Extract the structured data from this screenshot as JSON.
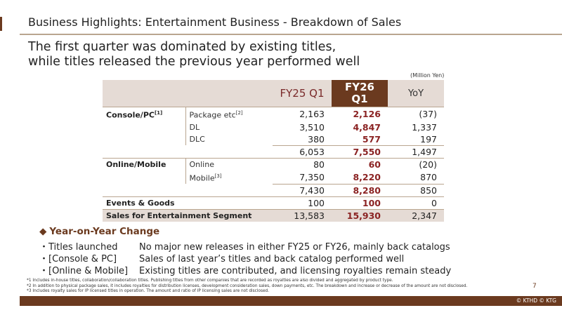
{
  "header": {
    "title": "Business Highlights: Entertainment Business - Breakdown of Sales",
    "subtitle_line1": "The first quarter was dominated by existing titles,",
    "subtitle_line2": "while titles released the previous year performed well"
  },
  "table": {
    "unit": "(Million Yen)",
    "columns": [
      "FY25 Q1",
      "FY26 Q1",
      "YoY"
    ],
    "console": {
      "label": "Console/PC",
      "note": "[1]",
      "rows": [
        {
          "label": "Package etc",
          "note": "[2]",
          "fy25": "2,163",
          "fy26": "2,126",
          "yoy": "(37)"
        },
        {
          "label": "DL",
          "note": "",
          "fy25": "3,510",
          "fy26": "4,847",
          "yoy": "1,337"
        },
        {
          "label": "DLC",
          "note": "",
          "fy25": "380",
          "fy26": "577",
          "yoy": "197"
        }
      ],
      "subtotal": {
        "fy25": "6,053",
        "fy26": "7,550",
        "yoy": "1,497"
      }
    },
    "online": {
      "label": "Online/Mobile",
      "rows": [
        {
          "label": "Online",
          "note": "",
          "fy25": "80",
          "fy26": "60",
          "yoy": "(20)"
        },
        {
          "label": "Mobile",
          "note": "[3]",
          "fy25": "7,350",
          "fy26": "8,220",
          "yoy": "870"
        }
      ],
      "subtotal": {
        "fy25": "7,430",
        "fy26": "8,280",
        "yoy": "850"
      }
    },
    "events": {
      "label": "Events & Goods",
      "fy25": "100",
      "fy26": "100",
      "yoy": "0"
    },
    "total": {
      "label": "Sales for Entertainment Segment",
      "fy25": "13,583",
      "fy26": "15,930",
      "yoy": "2,347"
    }
  },
  "yoy_change": {
    "icon": "diamond-icon",
    "title": "Year-on-Year Change",
    "items": [
      {
        "label": "・Titles launched",
        "text": "No major new releases in either FY25 or FY26, mainly back catalogs"
      },
      {
        "label": "・[Console & PC]",
        "text": "Sales of last year’s titles and back catalog performed well"
      },
      {
        "label": "・[Online & Mobile]",
        "text": "Existing titles are contributed, and licensing royalties remain steady"
      }
    ]
  },
  "footnotes": [
    "*1 Includes in-house titles, collaboration/collaboration titles. Publishing titles from other companies that are recorded as royalties are also divided and aggregated by product type.",
    "*2 In addition to physical package sales, it includes royalties for distribution licenses, development consideration sales, down payments, etc. The breakdown and increase or decrease of the amount are not disclosed.",
    "*3 Includes royalty sales for IP licensed titles in operation. The amount and ratio of IP licensing sales are not disclosed."
  ],
  "page_number": "7",
  "copyright": "© KTHD © KTG",
  "colors": {
    "brand": "#6b3a1f",
    "highlight": "#8b2323",
    "header_bg": "#e5dbd5"
  }
}
